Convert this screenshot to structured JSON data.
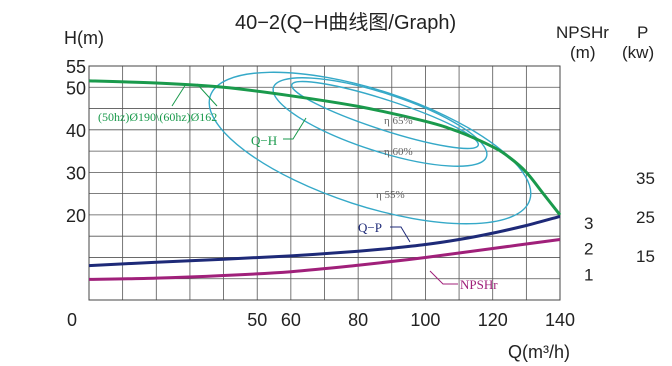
{
  "chart_data": {
    "type": "line",
    "title": "40−2(Q−H曲线图/Graph)",
    "xlabel": "Q(m³/h)",
    "ylabel": "H(m)",
    "right_axis_titles": {
      "npshr": "NPSHr",
      "npshr_unit": "(m)",
      "power": "P",
      "power_unit": "(kw)"
    },
    "x_range": [
      0,
      140
    ],
    "h_range": [
      0,
      55
    ],
    "npshr_range": [
      0,
      3
    ],
    "power_range": [
      0,
      35
    ],
    "grid": true,
    "x_ticks": [
      "0",
      "50",
      "60",
      "80",
      "100",
      "120",
      "140"
    ],
    "h_ticks": [
      "20",
      "30",
      "40",
      "50",
      "55"
    ],
    "npshr_ticks": [
      "1",
      "2",
      "3"
    ],
    "power_ticks": [
      "15",
      "25",
      "35"
    ],
    "series": [
      {
        "name": "Q−H",
        "axis": "H",
        "color": "#1a9a4c",
        "x": [
          0,
          20,
          40,
          60,
          80,
          100,
          110,
          120,
          125,
          130,
          135,
          140
        ],
        "y": [
          51.5,
          51,
          50,
          48,
          45.5,
          42,
          39.5,
          36,
          33.5,
          30,
          25,
          20
        ]
      },
      {
        "name": "Q−P",
        "axis": "P",
        "color": "#1e2a78",
        "x": [
          0,
          20,
          40,
          60,
          80,
          90,
          100,
          110,
          120,
          130,
          140
        ],
        "y": [
          10.3,
          11.3,
          12.2,
          13.2,
          14.6,
          15.5,
          16.6,
          18.1,
          20.0,
          22.3,
          25.0
        ]
      },
      {
        "name": "NPSHr",
        "axis": "NPSHr",
        "color": "#a0207a",
        "x": [
          0,
          20,
          40,
          60,
          80,
          100,
          120,
          140
        ],
        "y": [
          0.8,
          0.85,
          0.95,
          1.1,
          1.35,
          1.65,
          2.0,
          2.35
        ]
      }
    ],
    "efficiency_contours": [
      {
        "label": "η 65%",
        "color": "#35a9c8"
      },
      {
        "label": "η 60%",
        "color": "#35a9c8"
      },
      {
        "label": "η 55%",
        "color": "#35a9c8"
      }
    ],
    "annotations": [
      {
        "text": "(50hz)Ø190\\(60hz)Ø162",
        "color": "#1a9a4c"
      },
      {
        "text": "Q−H",
        "color": "#1a9a4c"
      },
      {
        "text": "Q−P",
        "color": "#1e2a78"
      },
      {
        "text": "NPSHr",
        "color": "#a0207a"
      }
    ]
  }
}
